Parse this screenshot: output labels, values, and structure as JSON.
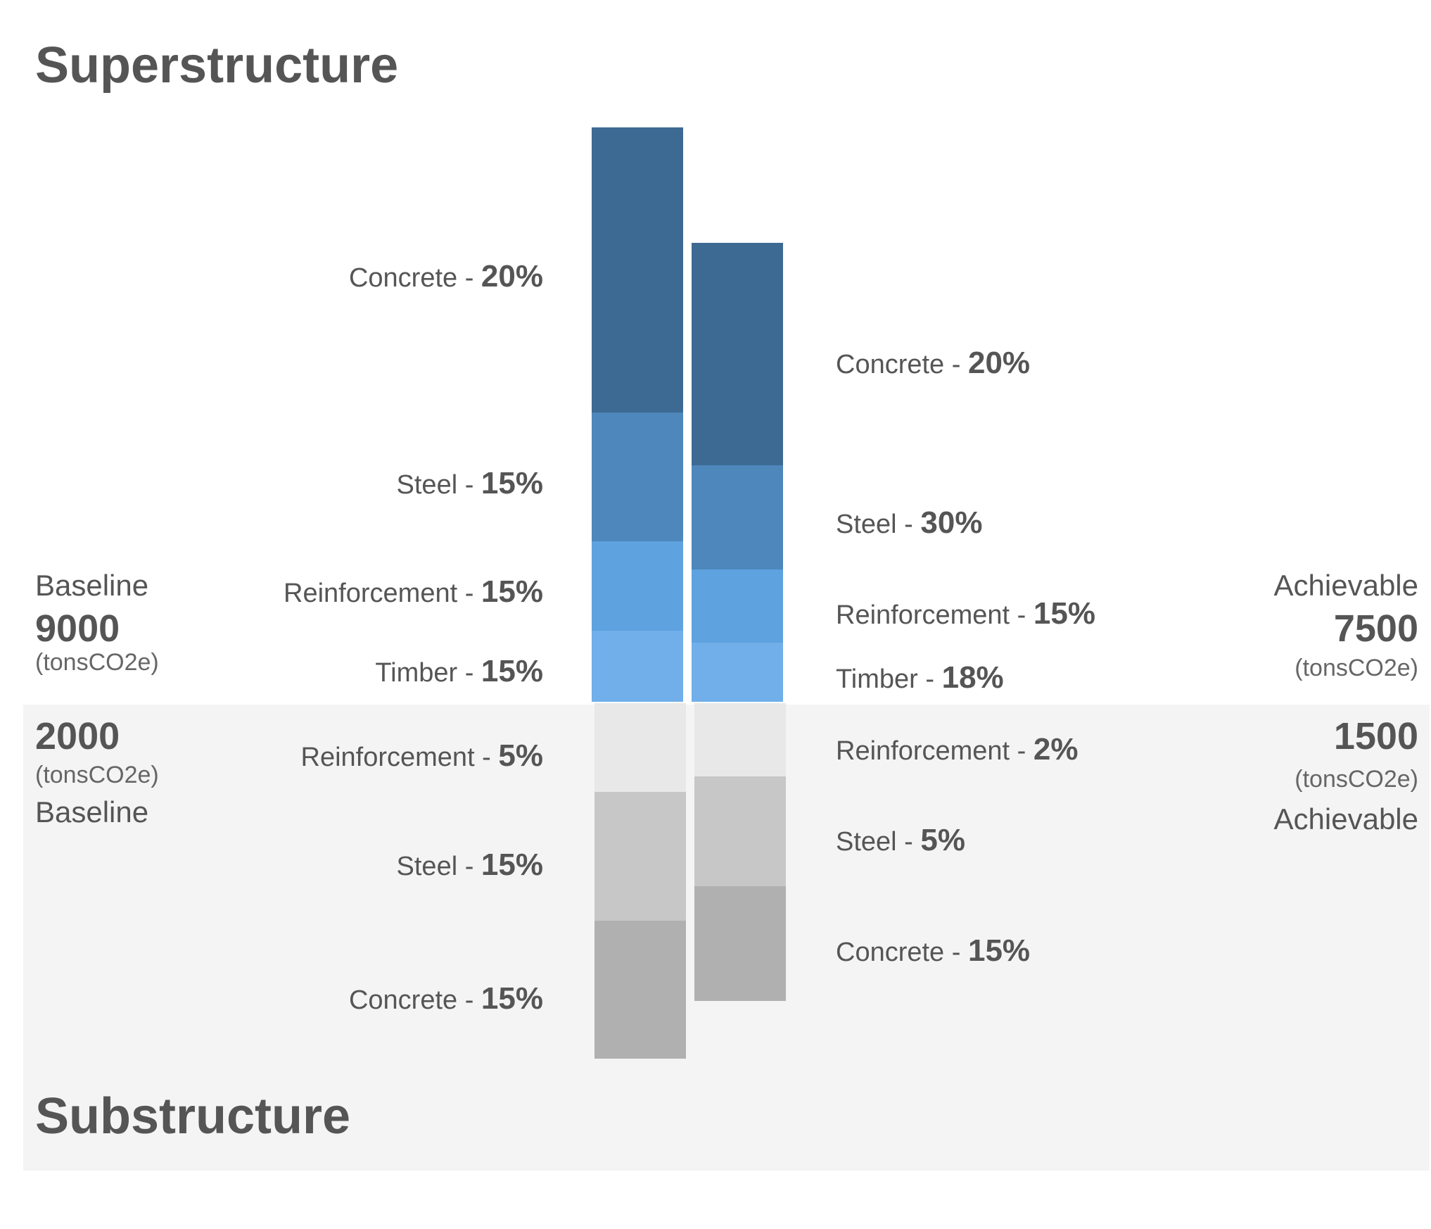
{
  "colors": {
    "super": [
      "#3d6a93",
      "#4d87bb",
      "#5ea2e0",
      "#70afe9"
    ],
    "sub_light": "#e8e8e8",
    "sub_mid": "#c7c7c7",
    "sub_dark": "#b0b0b0"
  },
  "superstructure": {
    "title": "Superstructure",
    "baseline": {
      "label": "Baseline",
      "total": "9000",
      "unit": "(tonsCO2e)",
      "segments": [
        {
          "name": "Concrete - ",
          "pct": "20%"
        },
        {
          "name": "Steel - ",
          "pct": "15%"
        },
        {
          "name": "Reinforcement - ",
          "pct": "15%"
        },
        {
          "name": "Timber - ",
          "pct": "15%"
        }
      ]
    },
    "achievable": {
      "label": "Achievable",
      "total": "7500",
      "unit": "(tonsCO2e)",
      "segments": [
        {
          "name": "Concrete - ",
          "pct": "20%"
        },
        {
          "name": "Steel - ",
          "pct": "30%"
        },
        {
          "name": "Reinforcement - ",
          "pct": "15%"
        },
        {
          "name": "Timber - ",
          "pct": "18%"
        }
      ]
    }
  },
  "substructure": {
    "title": "Substructure",
    "baseline": {
      "label": "Baseline",
      "total": "2000",
      "unit": "(tonsCO2e)",
      "segments": [
        {
          "name": "Reinforcement - ",
          "pct": "5%"
        },
        {
          "name": "Steel - ",
          "pct": "15%"
        },
        {
          "name": "Concrete - ",
          "pct": "15%"
        }
      ]
    },
    "achievable": {
      "label": "Achievable",
      "total": "1500",
      "unit": "(tonsCO2e)",
      "segments": [
        {
          "name": "Reinforcement - ",
          "pct": "2%"
        },
        {
          "name": "Steel - ",
          "pct": "5%"
        },
        {
          "name": "Concrete - ",
          "pct": "15%"
        }
      ]
    }
  },
  "chart_data": {
    "type": "bar",
    "stacked": true,
    "orientation": "vertical, superstructure stacked upward and substructure stacked downward from a shared baseline",
    "categories": [
      "Baseline",
      "Achievable"
    ],
    "series": [
      {
        "name": "Superstructure Concrete",
        "values": [
          20,
          20
        ]
      },
      {
        "name": "Superstructure Steel",
        "values": [
          15,
          30
        ]
      },
      {
        "name": "Superstructure Reinforcement",
        "values": [
          15,
          15
        ]
      },
      {
        "name": "Superstructure Timber",
        "values": [
          15,
          18
        ]
      },
      {
        "name": "Substructure Reinforcement",
        "values": [
          5,
          2
        ]
      },
      {
        "name": "Substructure Steel",
        "values": [
          15,
          5
        ]
      },
      {
        "name": "Substructure Concrete",
        "values": [
          15,
          15
        ]
      }
    ],
    "totals": {
      "Superstructure": {
        "Baseline": 9000,
        "Achievable": 7500
      },
      "Substructure": {
        "Baseline": 2000,
        "Achievable": 1500
      }
    },
    "unit": "(tonsCO2e)",
    "grid": false,
    "legend": "none"
  }
}
